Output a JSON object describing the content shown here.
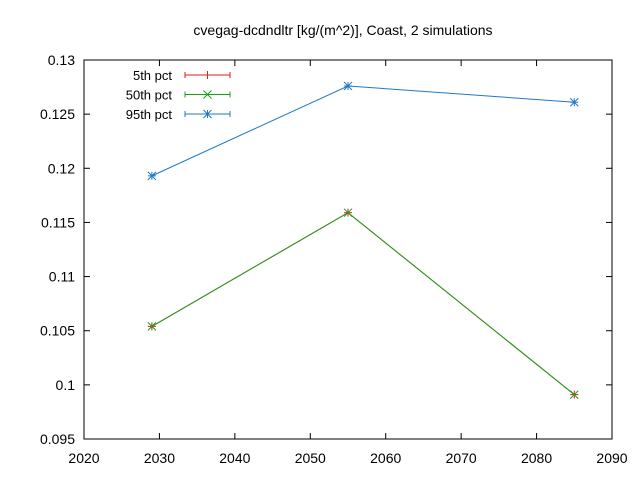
{
  "chart_data": {
    "type": "line",
    "title": "cvegag-dcdndltr [kg/(m^2)], Coast, 2 simulations",
    "xlabel": "",
    "ylabel": "",
    "xlim": [
      2020,
      2090
    ],
    "ylim": [
      0.095,
      0.13
    ],
    "x_ticks": [
      2020,
      2030,
      2040,
      2050,
      2060,
      2070,
      2080,
      2090
    ],
    "x_tick_labels": [
      "2020",
      "2030",
      "2040",
      "2050",
      "2060",
      "2070",
      "2080",
      "2090"
    ],
    "y_ticks": [
      0.095,
      0.1,
      0.105,
      0.11,
      0.115,
      0.12,
      0.125,
      0.13
    ],
    "y_tick_labels": [
      "0.095",
      "0.1",
      "0.105",
      "0.11",
      "0.115",
      "0.12",
      "0.125",
      "0.13"
    ],
    "grid": false,
    "legend_position": "top-left",
    "x": [
      2029,
      2055,
      2085
    ],
    "series": [
      {
        "name": "5th pct",
        "color": "#e41a1c",
        "marker": "plus",
        "values": [
          0.1054,
          0.1159,
          0.0991
        ]
      },
      {
        "name": "50th pct",
        "color": "#1a9e1a",
        "marker": "cross",
        "values": [
          0.1054,
          0.1159,
          0.0991
        ]
      },
      {
        "name": "95th pct",
        "color": "#1f78c8",
        "marker": "star",
        "values": [
          0.1193,
          0.1276,
          0.1261
        ]
      }
    ]
  }
}
